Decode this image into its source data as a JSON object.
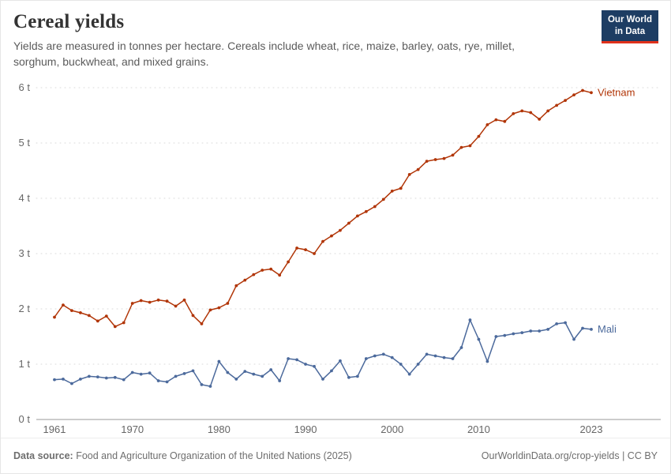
{
  "header": {
    "title": "Cereal yields",
    "subtitle": "Yields are measured in tonnes per hectare. Cereals include wheat, rice, maize, barley, oats, rye, millet, sorghum, buckwheat, and mixed grains.",
    "logo": {
      "line1": "Our World",
      "line2": "in Data",
      "bg_color": "#1d3d63",
      "accent_color": "#e0311b"
    }
  },
  "chart_data": {
    "type": "line",
    "title": "Cereal yields",
    "xlabel": "",
    "ylabel": "tonnes per hectare",
    "ylim": [
      0,
      6
    ],
    "yticks": [
      0,
      1,
      2,
      3,
      4,
      5,
      6
    ],
    "ytick_format": "{v} t",
    "xticks": [
      1961,
      1970,
      1980,
      1990,
      2000,
      2010,
      2023
    ],
    "grid": "horizontal-dotted",
    "legend_position": "end-of-line",
    "x": [
      1961,
      1962,
      1963,
      1964,
      1965,
      1966,
      1967,
      1968,
      1969,
      1970,
      1971,
      1972,
      1973,
      1974,
      1975,
      1976,
      1977,
      1978,
      1979,
      1980,
      1981,
      1982,
      1983,
      1984,
      1985,
      1986,
      1987,
      1988,
      1989,
      1990,
      1991,
      1992,
      1993,
      1994,
      1995,
      1996,
      1997,
      1998,
      1999,
      2000,
      2001,
      2002,
      2003,
      2004,
      2005,
      2006,
      2007,
      2008,
      2009,
      2010,
      2011,
      2012,
      2013,
      2014,
      2015,
      2016,
      2017,
      2018,
      2019,
      2020,
      2021,
      2022,
      2023
    ],
    "series": [
      {
        "name": "Vietnam",
        "color": "#B13507",
        "values": [
          1.85,
          2.07,
          1.97,
          1.93,
          1.88,
          1.78,
          1.87,
          1.68,
          1.75,
          2.1,
          2.15,
          2.12,
          2.16,
          2.14,
          2.05,
          2.16,
          1.88,
          1.73,
          1.98,
          2.02,
          2.1,
          2.42,
          2.52,
          2.62,
          2.7,
          2.72,
          2.61,
          2.85,
          3.1,
          3.07,
          3.0,
          3.22,
          3.32,
          3.42,
          3.55,
          3.68,
          3.76,
          3.85,
          3.98,
          4.13,
          4.18,
          4.43,
          4.52,
          4.67,
          4.7,
          4.72,
          4.78,
          4.92,
          4.95,
          5.12,
          5.33,
          5.42,
          5.39,
          5.53,
          5.58,
          5.55,
          5.43,
          5.58,
          5.68,
          5.77,
          5.87,
          5.95,
          5.91
        ]
      },
      {
        "name": "Mali",
        "color": "#4C6A9C",
        "values": [
          0.72,
          0.73,
          0.65,
          0.73,
          0.78,
          0.77,
          0.75,
          0.76,
          0.72,
          0.85,
          0.82,
          0.84,
          0.7,
          0.68,
          0.78,
          0.83,
          0.88,
          0.63,
          0.6,
          1.05,
          0.85,
          0.73,
          0.87,
          0.82,
          0.78,
          0.9,
          0.7,
          1.1,
          1.08,
          1.0,
          0.96,
          0.73,
          0.88,
          1.06,
          0.76,
          0.78,
          1.1,
          1.15,
          1.18,
          1.12,
          1.0,
          0.82,
          1.0,
          1.18,
          1.15,
          1.12,
          1.1,
          1.3,
          1.8,
          1.45,
          1.05,
          1.5,
          1.52,
          1.55,
          1.57,
          1.6,
          1.6,
          1.63,
          1.73,
          1.75,
          1.45,
          1.65,
          1.63
        ]
      }
    ]
  },
  "footer": {
    "source_label": "Data source:",
    "source_text": "Food and Agriculture Organization of the United Nations (2025)",
    "right_text": "OurWorldinData.org/crop-yields | CC BY"
  }
}
